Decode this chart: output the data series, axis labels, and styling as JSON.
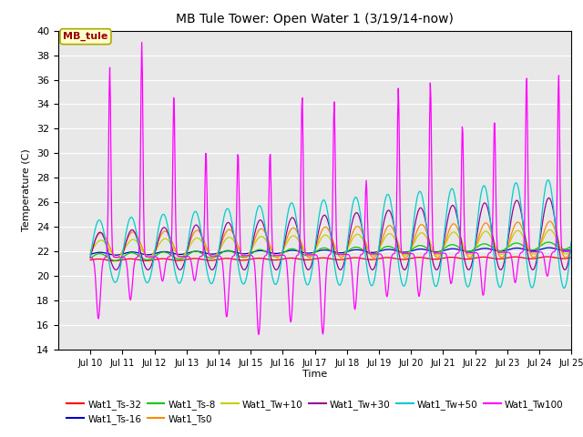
{
  "title": "MB Tule Tower: Open Water 1 (3/19/14-now)",
  "xlabel": "Time",
  "ylabel": "Temperature (C)",
  "ylim": [
    14,
    40
  ],
  "yticks": [
    14,
    16,
    18,
    20,
    22,
    24,
    26,
    28,
    30,
    32,
    34,
    36,
    38,
    40
  ],
  "xtick_labels": [
    "Jul 10",
    "Jul 11",
    "Jul 12",
    "Jul 13",
    "Jul 14",
    "Jul 15",
    "Jul 16",
    "Jul 17",
    "Jul 18",
    "Jul 19",
    "Jul 20",
    "Jul 21",
    "Jul 22",
    "Jul 23",
    "Jul 24",
    "Jul 25"
  ],
  "series_colors": {
    "Wat1_Ts-32": "#ff0000",
    "Wat1_Ts-16": "#0000cc",
    "Wat1_Ts-8": "#00cc00",
    "Wat1_Ts0": "#ff8800",
    "Wat1_Tw+10": "#cccc00",
    "Wat1_Tw+30": "#990099",
    "Wat1_Tw+50": "#00cccc",
    "Wat1_Tw100": "#ff00ff"
  },
  "annotation_text": "MB_tule",
  "bg_color": "#e8e8e8"
}
